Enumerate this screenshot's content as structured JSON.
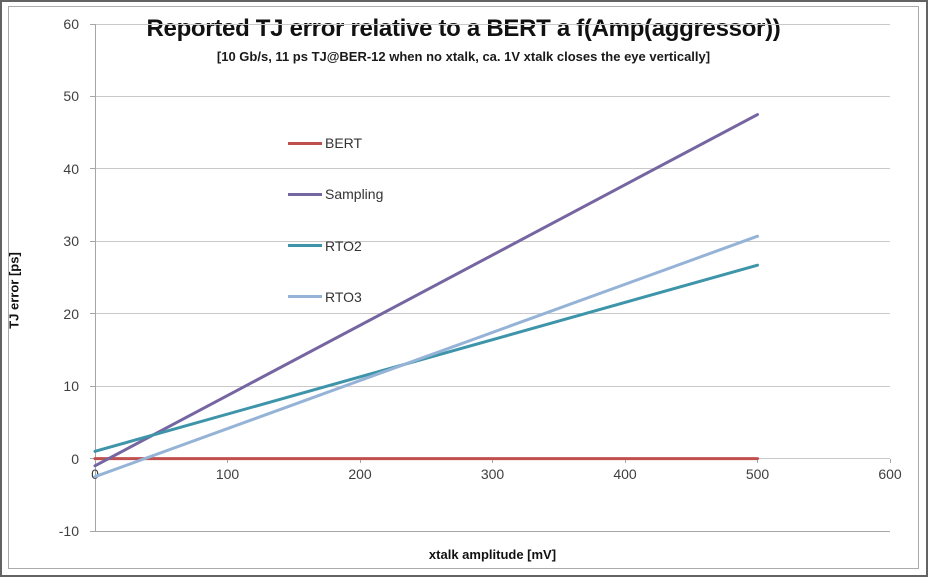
{
  "chart_data": {
    "type": "line",
    "title": "Reported TJ error relative to a BERT a f(Amp(aggressor))",
    "subtitle": "[10 Gb/s, 11 ps TJ@BER-12 when no xtalk, ca. 1V xtalk closes the eye vertically]",
    "xlabel": "xtalk amplitude [mV]",
    "ylabel": "TJ error [ps]",
    "xlim": [
      0,
      600
    ],
    "ylim": [
      -10,
      60
    ],
    "x_ticks": [
      0,
      100,
      200,
      300,
      400,
      500,
      600
    ],
    "y_ticks": [
      60,
      50,
      40,
      30,
      20,
      10,
      0,
      -10
    ],
    "grid": "horizontal-only",
    "legend_position": "inside-upper-left",
    "series": [
      {
        "name": "BERT",
        "color": "#C0504D",
        "x": [
          0,
          500
        ],
        "y": [
          0,
          0
        ]
      },
      {
        "name": "Sampling",
        "color": "#7565A1",
        "x": [
          0,
          500
        ],
        "y": [
          -1,
          47.5
        ]
      },
      {
        "name": "RTO2",
        "color": "#3E95AA",
        "x": [
          0,
          500
        ],
        "y": [
          1,
          26.7
        ]
      },
      {
        "name": "RTO3",
        "color": "#95B3D7",
        "x": [
          0,
          500
        ],
        "y": [
          -2.5,
          30.7
        ]
      }
    ]
  },
  "colors": {
    "gridline": "#C9C9C9",
    "axis": "#A6A6A6",
    "tick_text": "#3F3F3F",
    "title_text": "#111111",
    "frame_border": "#ABABAB",
    "outer_border": "#636363"
  }
}
